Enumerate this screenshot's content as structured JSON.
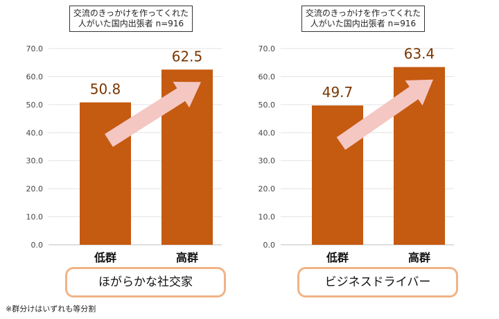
{
  "chart_data": [
    {
      "type": "bar",
      "title": "交流のきっかけを作ってくれた\n人がいた国内出張者 n=916",
      "categories": [
        "低群",
        "高群"
      ],
      "values": [
        50.8,
        62.5
      ],
      "value_labels": [
        "50.8",
        "62.5"
      ],
      "ylim": [
        0,
        70
      ],
      "yticks": [
        "0.0",
        "10.0",
        "20.0",
        "30.0",
        "40.0",
        "50.0",
        "60.0",
        "70.0"
      ],
      "group_label": "ほがらかな社交家",
      "bar_color": "#c55a11",
      "arrow_color": "#f4c7c3",
      "grid": true
    },
    {
      "type": "bar",
      "title": "交流のきっかけを作ってくれた\n人がいた国内出張者 n=916",
      "categories": [
        "低群",
        "高群"
      ],
      "values": [
        49.7,
        63.4
      ],
      "value_labels": [
        "49.7",
        "63.4"
      ],
      "ylim": [
        0,
        70
      ],
      "yticks": [
        "0.0",
        "10.0",
        "20.0",
        "30.0",
        "40.0",
        "50.0",
        "60.0",
        "70.0"
      ],
      "group_label": "ビジネスドライバー",
      "bar_color": "#c55a11",
      "arrow_color": "#f4c7c3",
      "grid": true
    }
  ],
  "footnote": "※群分けはいずれも等分割"
}
